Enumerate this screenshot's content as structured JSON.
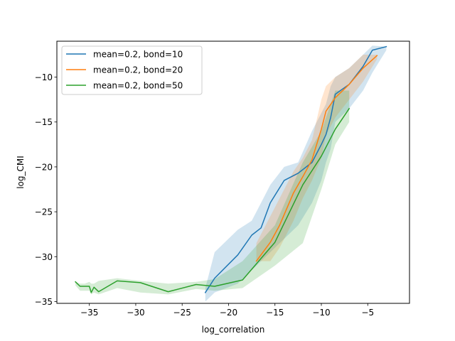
{
  "chart_data": {
    "type": "line",
    "title": "",
    "xlabel": "log_correlation",
    "ylabel": "log_CMI",
    "xlim": [
      -38.5,
      -0.5
    ],
    "ylim": [
      -35.2,
      -6.0
    ],
    "xticks": [
      -35,
      -30,
      -25,
      -20,
      -15,
      -10,
      -5
    ],
    "yticks": [
      -35,
      -30,
      -25,
      -20,
      -15,
      -10
    ],
    "xtick_labels": [
      "−35",
      "−30",
      "−25",
      "−20",
      "−15",
      "−10",
      "−5"
    ],
    "ytick_labels": [
      "−35",
      "−30",
      "−25",
      "−20",
      "−15",
      "−10"
    ],
    "grid": false,
    "legend_position": "upper left",
    "series": [
      {
        "name": "mean=0.2, bond=10",
        "color": "#1f77b4",
        "x": [
          -22.5,
          -21.5,
          -19.0,
          -17.5,
          -16.5,
          -15.5,
          -14.0,
          -12.5,
          -11.0,
          -10.0,
          -9.5,
          -9.0,
          -8.5,
          -7.0,
          -5.5,
          -4.5,
          -3.0
        ],
        "y": [
          -34.0,
          -32.4,
          -29.8,
          -27.6,
          -26.8,
          -24.0,
          -21.5,
          -20.7,
          -19.5,
          -17.5,
          -16.4,
          -14.5,
          -11.9,
          -10.8,
          -8.8,
          -7.0,
          -6.6
        ],
        "band_upper": [
          -33.5,
          -29.5,
          -27.0,
          -26.0,
          -24.0,
          -22.0,
          -20.0,
          -19.5,
          -16.0,
          -14.0,
          -13.0,
          -11.0,
          -10.0,
          -9.0,
          -7.5,
          -6.5,
          -6.6
        ],
        "band_lower": [
          -35.0,
          -34.0,
          -33.0,
          -31.5,
          -30.5,
          -29.5,
          -28.0,
          -26.5,
          -24.0,
          -21.5,
          -19.5,
          -18.0,
          -15.0,
          -13.5,
          -11.5,
          -9.5,
          -7.0
        ]
      },
      {
        "name": "mean=0.2, bond=20",
        "color": "#ff7f0e",
        "x": [
          -17.0,
          -15.5,
          -14.5,
          -13.0,
          -12.0,
          -11.0,
          -10.0,
          -9.5,
          -8.5,
          -7.0,
          -5.5,
          -4.0
        ],
        "y": [
          -30.5,
          -28.4,
          -26.5,
          -22.9,
          -21.1,
          -19.2,
          -15.8,
          -13.8,
          -12.3,
          -10.8,
          -9.0,
          -7.6
        ],
        "band_upper": [
          -28.5,
          -25.5,
          -23.5,
          -20.5,
          -19.0,
          -17.0,
          -12.5,
          -11.0,
          -10.0,
          -9.0,
          -7.5,
          -7.5
        ],
        "band_lower": [
          -30.5,
          -30.5,
          -29.0,
          -26.0,
          -23.5,
          -21.5,
          -19.0,
          -16.5,
          -14.5,
          -12.5,
          -10.5,
          -8.0
        ]
      },
      {
        "name": "mean=0.2, bond=50",
        "color": "#2ca02c",
        "x": [
          -36.5,
          -36.0,
          -35.5,
          -35.0,
          -34.8,
          -34.5,
          -34.0,
          -32.0,
          -29.5,
          -26.5,
          -23.5,
          -21.5,
          -18.5,
          -15.0,
          -12.0,
          -10.0,
          -8.5,
          -7.0
        ],
        "y": [
          -32.8,
          -33.3,
          -33.3,
          -33.3,
          -34.0,
          -33.4,
          -33.9,
          -32.7,
          -32.9,
          -33.9,
          -33.1,
          -33.3,
          -32.6,
          -28.4,
          -22.0,
          -18.8,
          -15.8,
          -13.5
        ],
        "band_upper": [
          -32.8,
          -33.0,
          -33.0,
          -32.8,
          -33.0,
          -33.0,
          -32.7,
          -32.4,
          -32.7,
          -33.0,
          -32.8,
          -32.5,
          -30.5,
          -26.5,
          -19.5,
          -16.0,
          -11.5,
          -11.5
        ],
        "band_lower": [
          -33.2,
          -33.8,
          -33.8,
          -33.8,
          -34.2,
          -34.0,
          -34.2,
          -33.5,
          -34.0,
          -34.2,
          -33.6,
          -33.8,
          -33.5,
          -31.0,
          -28.5,
          -22.5,
          -17.5,
          -15.0
        ]
      }
    ]
  }
}
